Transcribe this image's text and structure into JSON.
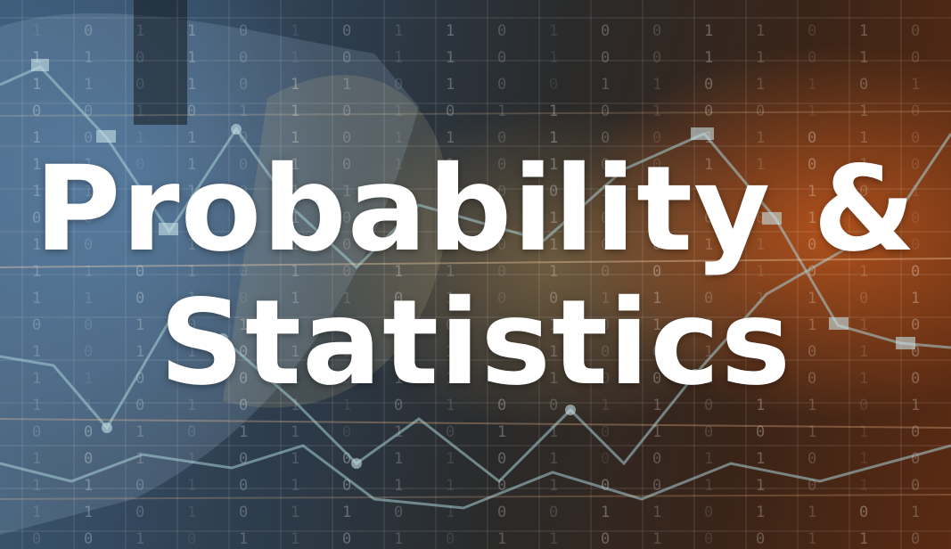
{
  "hero": {
    "title_line1": "Probability &",
    "title_line2": "Statistics"
  },
  "colors": {
    "text": "#ffffff",
    "accent_orange": "#d6601e",
    "accent_blue": "#466e96",
    "chart_lines": "#9fc4c8"
  },
  "binary_digits": [
    "1",
    "0",
    "1",
    "1",
    "0",
    "1",
    "0",
    "1",
    "1",
    "0",
    "1",
    "0",
    "0",
    "1",
    "1",
    "0",
    "1",
    "0",
    "1",
    "1",
    "0",
    "1",
    "0",
    "1",
    "0",
    "1",
    "1",
    "0",
    "1",
    "0",
    "0",
    "1",
    "1",
    "0",
    "1",
    "0",
    "1",
    "1",
    "0",
    "1",
    "0",
    "1",
    "1",
    "0",
    "1",
    "0",
    "0",
    "1",
    "1",
    "0",
    "1",
    "1",
    "0",
    "1",
    "0",
    "0",
    "1",
    "0",
    "1",
    "1",
    "0",
    "1",
    "0",
    "1",
    "1",
    "0",
    "1",
    "0",
    "0",
    "1",
    "1",
    "0"
  ]
}
